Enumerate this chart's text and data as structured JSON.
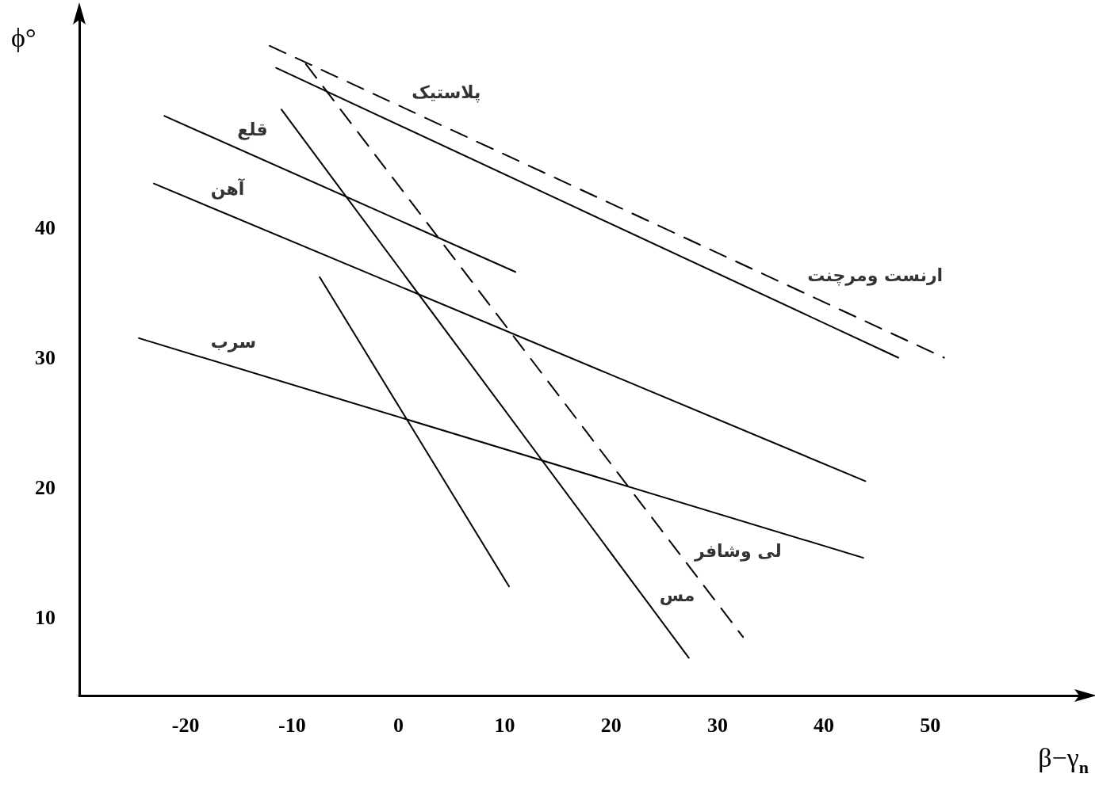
{
  "chart_data": {
    "type": "line",
    "xlabel": "β−γ$_{n}$",
    "ylabel": "ϕ°",
    "xlim": [
      -30,
      64
    ],
    "ylim": [
      4,
      56
    ],
    "xticks": [
      -20,
      -10,
      0,
      10,
      20,
      30,
      40,
      50
    ],
    "yticks": [
      10,
      20,
      30,
      40
    ],
    "grid": false,
    "marker": "none",
    "series": [
      {
        "color": "#000000",
        "x": [
          -24.4,
          43.7
        ],
        "values": [
          31.5,
          14.6
        ],
        "line_style": "solid"
      },
      {
        "color": "#000000",
        "x": [
          -23.0,
          43.9
        ],
        "values": [
          43.4,
          20.5
        ],
        "line_style": "solid"
      },
      {
        "color": "#000000",
        "x": [
          -22.0,
          11.0
        ],
        "values": [
          48.6,
          36.6
        ],
        "line_style": "solid"
      },
      {
        "color": "#000000",
        "x": [
          -7.4,
          10.4
        ],
        "values": [
          36.2,
          12.4
        ],
        "line_style": "solid"
      },
      {
        "color": "#000000",
        "x": [
          -11.0,
          27.3
        ],
        "values": [
          49.1,
          6.9
        ],
        "line_style": "solid"
      },
      {
        "color": "#000000",
        "x": [
          -8.7,
          32.4
        ],
        "values": [
          52.6,
          8.5
        ],
        "line_style": "dashed"
      },
      {
        "color": "#000000",
        "x": [
          -11.5,
          47.0
        ],
        "values": [
          52.3,
          30.0
        ],
        "line_style": "solid"
      },
      {
        "color": "#000000",
        "x": [
          -12.1,
          51.3
        ],
        "values": [
          54.0,
          30.0
        ],
        "line_style": "dashed"
      }
    ],
    "annotations": [
      {
        "text": "پلاستیک",
        "x": 0.8,
        "y": 49.12
      },
      {
        "text": "قلع",
        "x": -15.6,
        "y": 46.27
      },
      {
        "text": "آهن",
        "x": -18.1,
        "y": 41.72
      },
      {
        "text": "سرب",
        "x": -18.1,
        "y": 29.94
      },
      {
        "text": "ارنست ومرچنت",
        "x": 38,
        "y": 35.04
      },
      {
        "text": "لی وشافر",
        "x": 27.4,
        "y": 13.87
      },
      {
        "text": "مس",
        "x": 24.1,
        "y": 10.43
      }
    ]
  }
}
